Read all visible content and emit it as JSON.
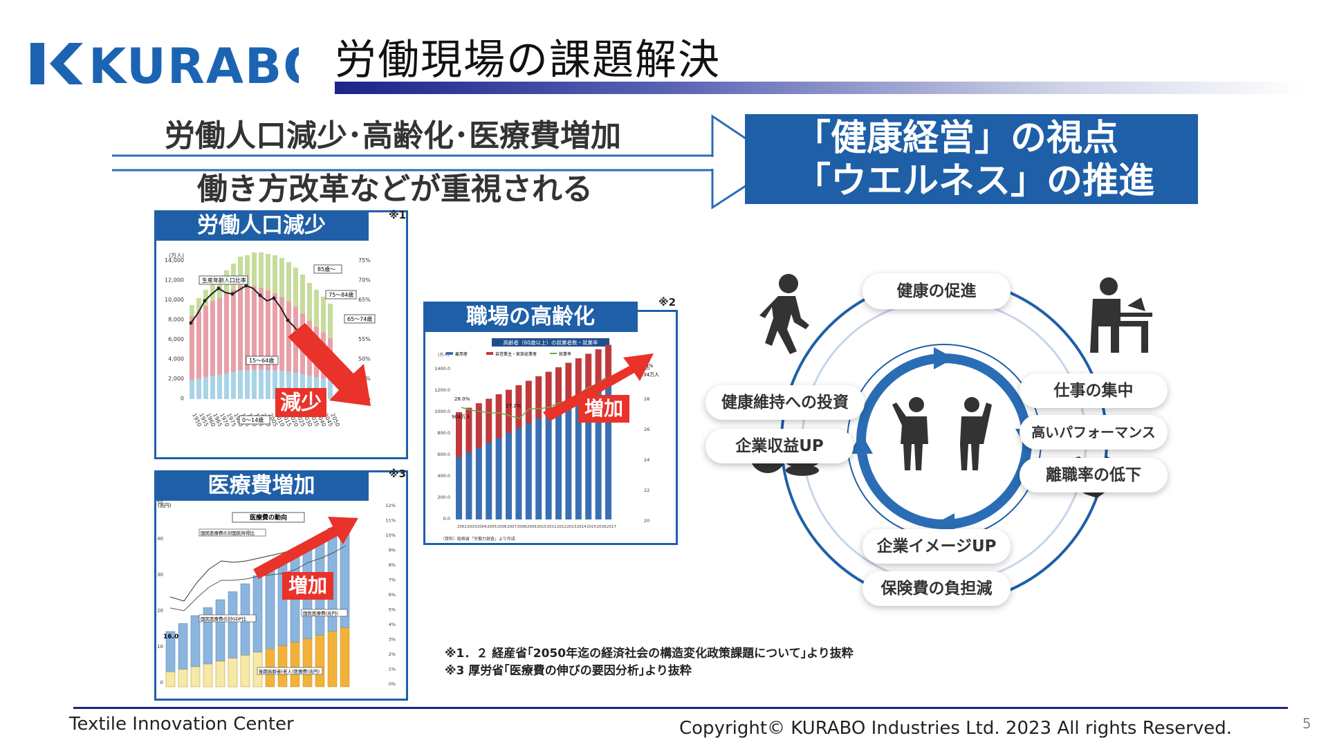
{
  "logo": {
    "text": "KURABO",
    "color": "#1c64b3"
  },
  "header": {
    "title": "労働現場の課題解決"
  },
  "lead": {
    "line1": "労働人口減少･高齢化･医療費増加",
    "line2": "働き方改革などが重視される"
  },
  "banner": {
    "line1": "「健康経営」の視点",
    "line2": "「ウエルネス」の推進"
  },
  "panel_labor": {
    "title": "労働人口減少",
    "note": "※1",
    "unit": "(万人)",
    "y_ticks": [
      "14,000",
      "12,000",
      "10,000",
      "8,000",
      "6,000",
      "4,000",
      "2,000",
      "0"
    ],
    "y2_ticks": [
      "75%",
      "70%",
      "65%",
      "60%",
      "55%",
      "50%",
      "45%",
      "40%"
    ],
    "x_ticks": [
      "1950",
      "1955",
      "1960",
      "1965",
      "1970",
      "1975",
      "1980",
      "1985",
      "1990",
      "1995",
      "2000",
      "2005",
      "2010",
      "2015",
      "2020",
      "2025",
      "2030",
      "2035",
      "2040",
      "2045",
      "2050"
    ],
    "labels": {
      "ratio": "生産年齢人口比率",
      "age85": "85歳～",
      "age75": "75～84歳",
      "age65": "65～74歳",
      "age15": "15～64歳",
      "age0": "0～14歳"
    },
    "callout": "減少"
  },
  "panel_aging": {
    "title": "職場の高齢化",
    "note": "※2",
    "subtitle": "高齢者（60歳以上）の就業者数・就業率",
    "unit": "(万人)",
    "legend": [
      "雇用者",
      "自営業主・家族従業者",
      "就業率"
    ],
    "first_rate": "28.0%",
    "mid_rate": "27.2%",
    "last_rate": "31.0%",
    "first_value": "904万人",
    "last_value": "1,334万人",
    "y_ticks": [
      "1400.0",
      "1200.0",
      "1000.0",
      "800.0",
      "600.0",
      "400.0",
      "200.0",
      "0.0"
    ],
    "y2_ticks": [
      "30",
      "28",
      "26",
      "24",
      "22",
      "20"
    ],
    "x_ticks": [
      "2002",
      "2003",
      "2004",
      "2005",
      "2006",
      "2007",
      "2008",
      "2009",
      "2010",
      "2011",
      "2012",
      "2013",
      "2014",
      "2015",
      "2016",
      "2017"
    ],
    "source": "（資料）総務省「労働力調査」より作成",
    "callout": "増加"
  },
  "panel_medical": {
    "title": "医療費増加",
    "note": "※3",
    "subtitle": "医療費の動向",
    "unit": "(兆円)",
    "label_ratio_income": "国民医療費の対国民所得比",
    "label_ratio_gdp": "国民医療費の対GDP比",
    "label_national": "国民医療費(兆円)",
    "label_elderly": "後期高齢者(老人)医療費(兆円)",
    "first_value": "16.0",
    "y_ticks": [
      "50",
      "40",
      "30",
      "20",
      "10",
      "0"
    ],
    "y2_ticks": [
      "12%",
      "11%",
      "10%",
      "9%",
      "8%",
      "7%",
      "6%",
      "5%",
      "4%",
      "3%",
      "2%",
      "1%",
      "0%"
    ],
    "callout": "増加"
  },
  "cycle": {
    "top": "健康の促進",
    "left1": "健康維持への投資",
    "left2": "企業収益UP",
    "right1": "仕事の集中",
    "right2": "高いパフォーマンス",
    "right3": "離職率の低下",
    "bottom1": "企業イメージUP",
    "bottom2": "保険費の負担減",
    "accent": "#1f5fa8"
  },
  "sources": {
    "line1": "※1．２ 経産省｢2050年迄の経済社会の構造変化政策課題について｣より抜粋",
    "line2": "※3 厚労省｢医療費の伸びの要因分析｣より抜粋"
  },
  "footer": {
    "left": "Textile Innovation Center",
    "right": "Copyright©  KURABO Industries Ltd. 2023 All rights Reserved.",
    "page": "5"
  }
}
